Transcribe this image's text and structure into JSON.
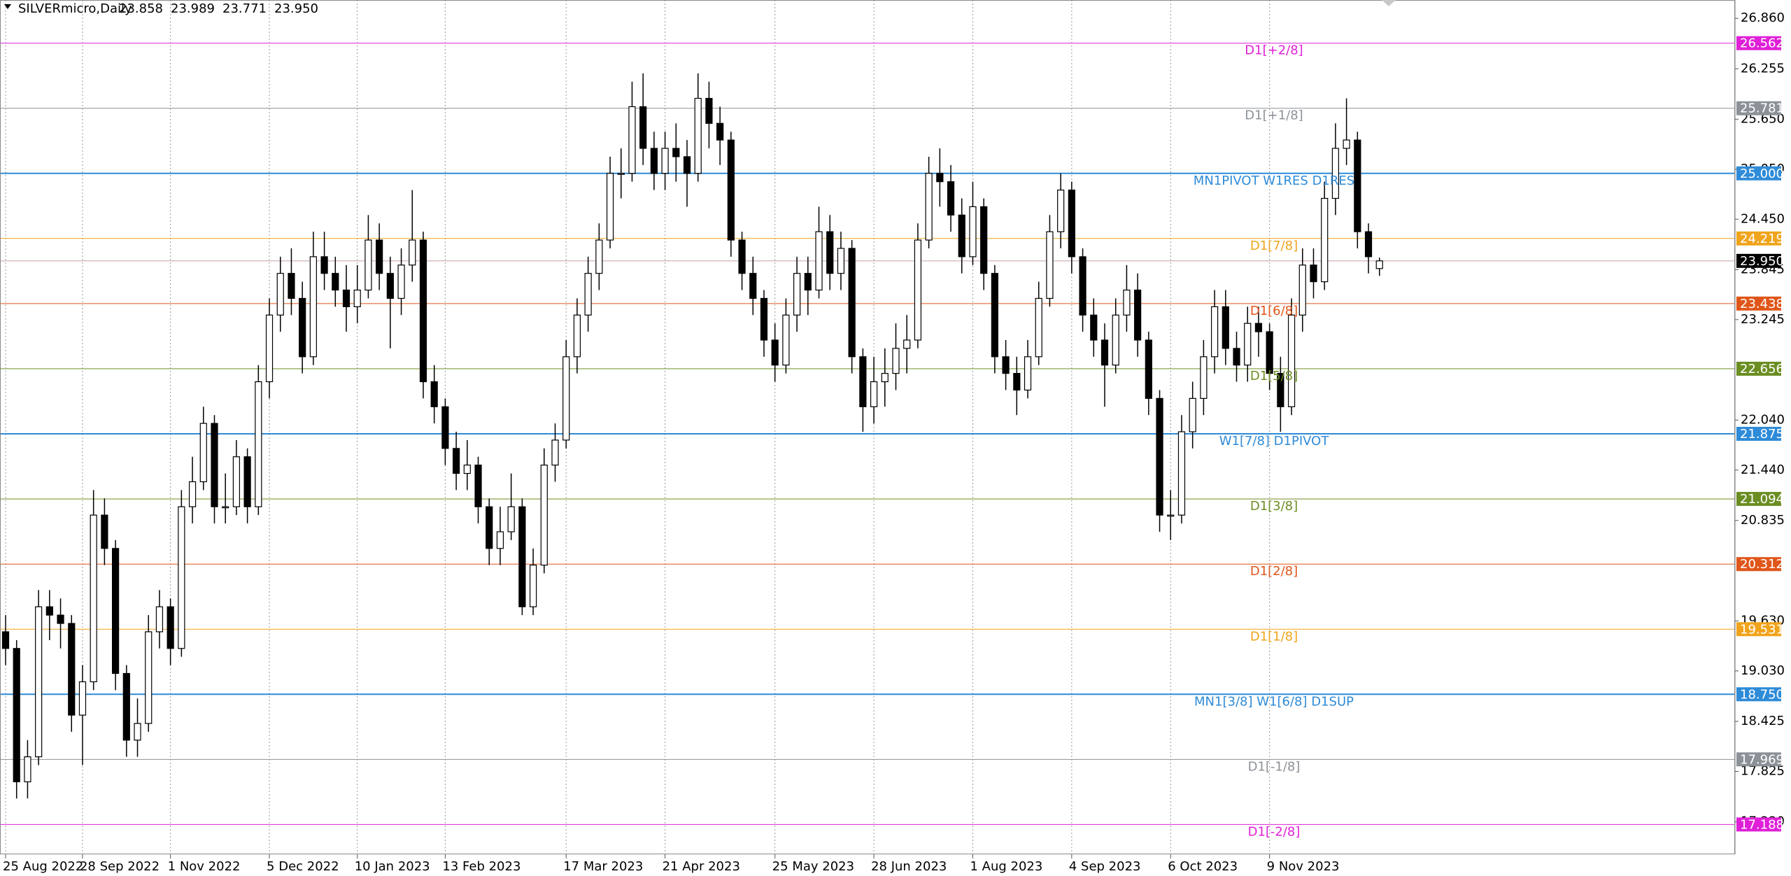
{
  "chart_data": {
    "type": "candlestick",
    "title": "SILVERmicro,Daily",
    "ohlc_labels": [
      "23.858",
      "23.989",
      "23.771",
      "23.950"
    ],
    "candles": [
      [
        19.5,
        19.7,
        19.1,
        19.3
      ],
      [
        19.3,
        19.4,
        17.5,
        17.7
      ],
      [
        17.7,
        18.2,
        17.5,
        18.0
      ],
      [
        18.0,
        20.0,
        17.9,
        19.8
      ],
      [
        19.8,
        20.0,
        19.4,
        19.7
      ],
      [
        19.7,
        19.9,
        19.3,
        19.6
      ],
      [
        19.6,
        19.7,
        18.3,
        18.5
      ],
      [
        18.5,
        19.1,
        17.9,
        18.9
      ],
      [
        18.9,
        21.2,
        18.8,
        20.9
      ],
      [
        20.9,
        21.1,
        20.3,
        20.5
      ],
      [
        20.5,
        20.6,
        18.8,
        19.0
      ],
      [
        19.0,
        19.1,
        18.0,
        18.2
      ],
      [
        18.2,
        18.7,
        18.0,
        18.4
      ],
      [
        18.4,
        19.7,
        18.3,
        19.5
      ],
      [
        19.5,
        20.0,
        19.3,
        19.8
      ],
      [
        19.8,
        19.9,
        19.1,
        19.3
      ],
      [
        19.3,
        21.2,
        19.2,
        21.0
      ],
      [
        21.0,
        21.6,
        20.8,
        21.3
      ],
      [
        21.3,
        22.2,
        21.2,
        22.0
      ],
      [
        22.0,
        22.1,
        20.8,
        21.0
      ],
      [
        21.0,
        21.4,
        20.8,
        21.0
      ],
      [
        21.0,
        21.8,
        20.9,
        21.6
      ],
      [
        21.6,
        21.7,
        20.8,
        21.0
      ],
      [
        21.0,
        22.7,
        20.9,
        22.5
      ],
      [
        22.5,
        23.5,
        22.3,
        23.3
      ],
      [
        23.3,
        24.0,
        23.1,
        23.8
      ],
      [
        23.8,
        24.1,
        23.3,
        23.5
      ],
      [
        23.5,
        23.7,
        22.6,
        22.8
      ],
      [
        22.8,
        24.3,
        22.7,
        24.0
      ],
      [
        24.0,
        24.3,
        23.6,
        23.8
      ],
      [
        23.8,
        24.0,
        23.4,
        23.6
      ],
      [
        23.6,
        23.9,
        23.1,
        23.4
      ],
      [
        23.4,
        23.9,
        23.2,
        23.6
      ],
      [
        23.6,
        24.5,
        23.5,
        24.2
      ],
      [
        24.2,
        24.4,
        23.6,
        23.8
      ],
      [
        23.8,
        24.0,
        22.9,
        23.5
      ],
      [
        23.5,
        24.1,
        23.3,
        23.9
      ],
      [
        23.9,
        24.8,
        23.7,
        24.2
      ],
      [
        24.2,
        24.3,
        22.3,
        22.5
      ],
      [
        22.5,
        22.7,
        22.0,
        22.2
      ],
      [
        22.2,
        22.3,
        21.5,
        21.7
      ],
      [
        21.7,
        21.9,
        21.2,
        21.4
      ],
      [
        21.4,
        21.8,
        21.2,
        21.5
      ],
      [
        21.5,
        21.6,
        20.8,
        21.0
      ],
      [
        21.0,
        21.1,
        20.3,
        20.5
      ],
      [
        20.5,
        21.0,
        20.3,
        20.7
      ],
      [
        20.7,
        21.4,
        20.6,
        21.0
      ],
      [
        21.0,
        21.1,
        19.7,
        19.8
      ],
      [
        19.8,
        20.5,
        19.7,
        20.3
      ],
      [
        20.3,
        21.7,
        20.2,
        21.5
      ],
      [
        21.5,
        22.0,
        21.3,
        21.8
      ],
      [
        21.8,
        23.0,
        21.7,
        22.8
      ],
      [
        22.8,
        23.5,
        22.6,
        23.3
      ],
      [
        23.3,
        24.0,
        23.1,
        23.8
      ],
      [
        23.8,
        24.4,
        23.6,
        24.2
      ],
      [
        24.2,
        25.2,
        24.1,
        25.0
      ],
      [
        25.0,
        25.3,
        24.7,
        25.0
      ],
      [
        25.0,
        26.1,
        24.9,
        25.8
      ],
      [
        25.8,
        26.2,
        25.1,
        25.3
      ],
      [
        25.3,
        25.5,
        24.8,
        25.0
      ],
      [
        25.0,
        25.5,
        24.8,
        25.3
      ],
      [
        25.3,
        25.6,
        24.9,
        25.2
      ],
      [
        25.2,
        25.4,
        24.6,
        25.0
      ],
      [
        25.0,
        26.2,
        24.9,
        25.9
      ],
      [
        25.9,
        26.1,
        25.3,
        25.6
      ],
      [
        25.6,
        25.8,
        25.1,
        25.4
      ],
      [
        25.4,
        25.5,
        24.0,
        24.2
      ],
      [
        24.2,
        24.3,
        23.6,
        23.8
      ],
      [
        23.8,
        24.0,
        23.3,
        23.5
      ],
      [
        23.5,
        23.6,
        22.8,
        23.0
      ],
      [
        23.0,
        23.2,
        22.5,
        22.7
      ],
      [
        22.7,
        23.5,
        22.6,
        23.3
      ],
      [
        23.3,
        24.0,
        23.1,
        23.8
      ],
      [
        23.8,
        24.0,
        23.3,
        23.6
      ],
      [
        23.6,
        24.6,
        23.5,
        24.3
      ],
      [
        24.3,
        24.5,
        23.6,
        23.8
      ],
      [
        23.8,
        24.3,
        23.6,
        24.1
      ],
      [
        24.1,
        24.2,
        22.6,
        22.8
      ],
      [
        22.8,
        22.9,
        21.9,
        22.2
      ],
      [
        22.2,
        22.8,
        22.0,
        22.5
      ],
      [
        22.5,
        22.9,
        22.2,
        22.6
      ],
      [
        22.6,
        23.2,
        22.4,
        22.9
      ],
      [
        22.9,
        23.3,
        22.6,
        23.0
      ],
      [
        23.0,
        24.4,
        22.9,
        24.2
      ],
      [
        24.2,
        25.2,
        24.1,
        25.0
      ],
      [
        25.0,
        25.3,
        24.6,
        24.9
      ],
      [
        24.9,
        25.1,
        24.3,
        24.5
      ],
      [
        24.5,
        24.7,
        23.8,
        24.0
      ],
      [
        24.0,
        24.9,
        23.9,
        24.6
      ],
      [
        24.6,
        24.7,
        23.6,
        23.8
      ],
      [
        23.8,
        23.9,
        22.6,
        22.8
      ],
      [
        22.8,
        23.0,
        22.4,
        22.6
      ],
      [
        22.6,
        22.8,
        22.1,
        22.4
      ],
      [
        22.4,
        23.0,
        22.3,
        22.8
      ],
      [
        22.8,
        23.7,
        22.7,
        23.5
      ],
      [
        23.5,
        24.5,
        23.4,
        24.3
      ],
      [
        24.3,
        25.0,
        24.1,
        24.8
      ],
      [
        24.8,
        24.9,
        23.8,
        24.0
      ],
      [
        24.0,
        24.1,
        23.1,
        23.3
      ],
      [
        23.3,
        23.5,
        22.8,
        23.0
      ],
      [
        23.0,
        23.2,
        22.2,
        22.7
      ],
      [
        22.7,
        23.5,
        22.6,
        23.3
      ],
      [
        23.3,
        23.9,
        23.1,
        23.6
      ],
      [
        23.6,
        23.8,
        22.8,
        23.0
      ],
      [
        23.0,
        23.1,
        22.1,
        22.3
      ],
      [
        22.3,
        22.4,
        20.7,
        20.9
      ],
      [
        20.9,
        21.2,
        20.6,
        20.9
      ],
      [
        20.9,
        22.1,
        20.8,
        21.9
      ],
      [
        21.9,
        22.5,
        21.7,
        22.3
      ],
      [
        22.3,
        23.0,
        22.1,
        22.8
      ],
      [
        22.8,
        23.6,
        22.6,
        23.4
      ],
      [
        23.4,
        23.6,
        22.7,
        22.9
      ],
      [
        22.9,
        23.1,
        22.5,
        22.7
      ],
      [
        22.7,
        23.4,
        22.5,
        23.2
      ],
      [
        23.2,
        23.4,
        22.8,
        23.1
      ],
      [
        23.1,
        23.2,
        22.4,
        22.6
      ],
      [
        22.6,
        22.8,
        21.9,
        22.2
      ],
      [
        22.2,
        23.5,
        22.1,
        23.3
      ],
      [
        23.3,
        24.1,
        23.1,
        23.9
      ],
      [
        23.9,
        24.1,
        23.5,
        23.7
      ],
      [
        23.7,
        24.9,
        23.6,
        24.7
      ],
      [
        24.7,
        25.6,
        24.5,
        25.3
      ],
      [
        25.3,
        25.9,
        25.1,
        25.4
      ],
      [
        25.4,
        25.5,
        24.1,
        24.3
      ],
      [
        24.3,
        24.4,
        23.8,
        24.0
      ],
      [
        23.858,
        23.989,
        23.771,
        23.95
      ]
    ],
    "ylim": [
      16.83,
      27.08
    ],
    "yticks": [
      {
        "value": 26.86,
        "label": "26.860"
      },
      26.255,
      {
        "value": 25.65,
        "label": "25.650"
      },
      {
        "value": 25.05,
        "label": "25.050"
      },
      {
        "value": 24.45,
        "label": "24.450"
      },
      23.845,
      23.245,
      {
        "value": 22.04,
        "label": "22.040"
      },
      {
        "value": 21.44,
        "label": "21.440"
      },
      20.835,
      {
        "value": 19.63,
        "label": "19.630"
      },
      {
        "value": 19.03,
        "label": "19.030"
      },
      18.425,
      17.825,
      {
        "value": 17.22,
        "label": "17.220"
      }
    ],
    "xticks": [
      {
        "value": 0,
        "label": "25 Aug 2022"
      },
      {
        "value": 7,
        "label": "28 Sep 2022"
      },
      {
        "value": 15,
        "label": "1 Nov 2022"
      },
      {
        "value": 24,
        "label": "5 Dec 2022"
      },
      {
        "value": 32,
        "label": "10 Jan 2023"
      },
      {
        "value": 40,
        "label": "13 Feb 2023"
      },
      {
        "value": 51,
        "label": "17 Mar 2023"
      },
      {
        "value": 60,
        "label": "21 Apr 2023"
      },
      {
        "value": 70,
        "label": "25 May 2023"
      },
      {
        "value": 79,
        "label": "28 Jun 2023"
      },
      {
        "value": 88,
        "label": "1 Aug 2023"
      },
      {
        "value": 97,
        "label": "4 Sep 2023"
      },
      {
        "value": 106,
        "label": "6 Oct 2023"
      },
      {
        "value": 115,
        "label": "9 Nov 2023"
      }
    ],
    "levels": [
      {
        "value": 26.562,
        "text": "D1[+2/8]",
        "color": "#e020d8"
      },
      {
        "value": 25.781,
        "text": "D1[+1/8]",
        "color": "#8c9198"
      },
      {
        "value": 25.0,
        "label": "25.000",
        "text": "MN1PIVOT W1RES D1RES",
        "color": "#2e8bd8"
      },
      {
        "value": 24.219,
        "text": "D1[7/8]",
        "color": "#f0a41c"
      },
      {
        "value": 23.438,
        "text": "D1[6/8]",
        "color": "#e0561a"
      },
      {
        "value": 22.656,
        "text": "D1[5/8]",
        "color": "#6b8e23"
      },
      {
        "value": 21.875,
        "text": "W1[7/8] D1PIVOT",
        "color": "#2e8bd8"
      },
      {
        "value": 21.094,
        "text": "D1[3/8]",
        "color": "#6b8e23"
      },
      {
        "value": 20.312,
        "text": "D1[2/8]",
        "color": "#e0561a"
      },
      {
        "value": 19.531,
        "text": "D1[1/8]",
        "color": "#f0a41c"
      },
      {
        "value": 18.75,
        "label": "18.750",
        "text": "MN1[3/8] W1[6/8] D1SUP",
        "color": "#2e8bd8"
      },
      {
        "value": 17.969,
        "text": "D1[-1/8]",
        "color": "#8c9198"
      },
      {
        "value": 17.188,
        "text": "D1[-2/8]",
        "color": "#e020d8"
      }
    ],
    "price": 23.95,
    "price_label": "23.950",
    "up_color": "#ffffff",
    "down_color": "#000000"
  }
}
